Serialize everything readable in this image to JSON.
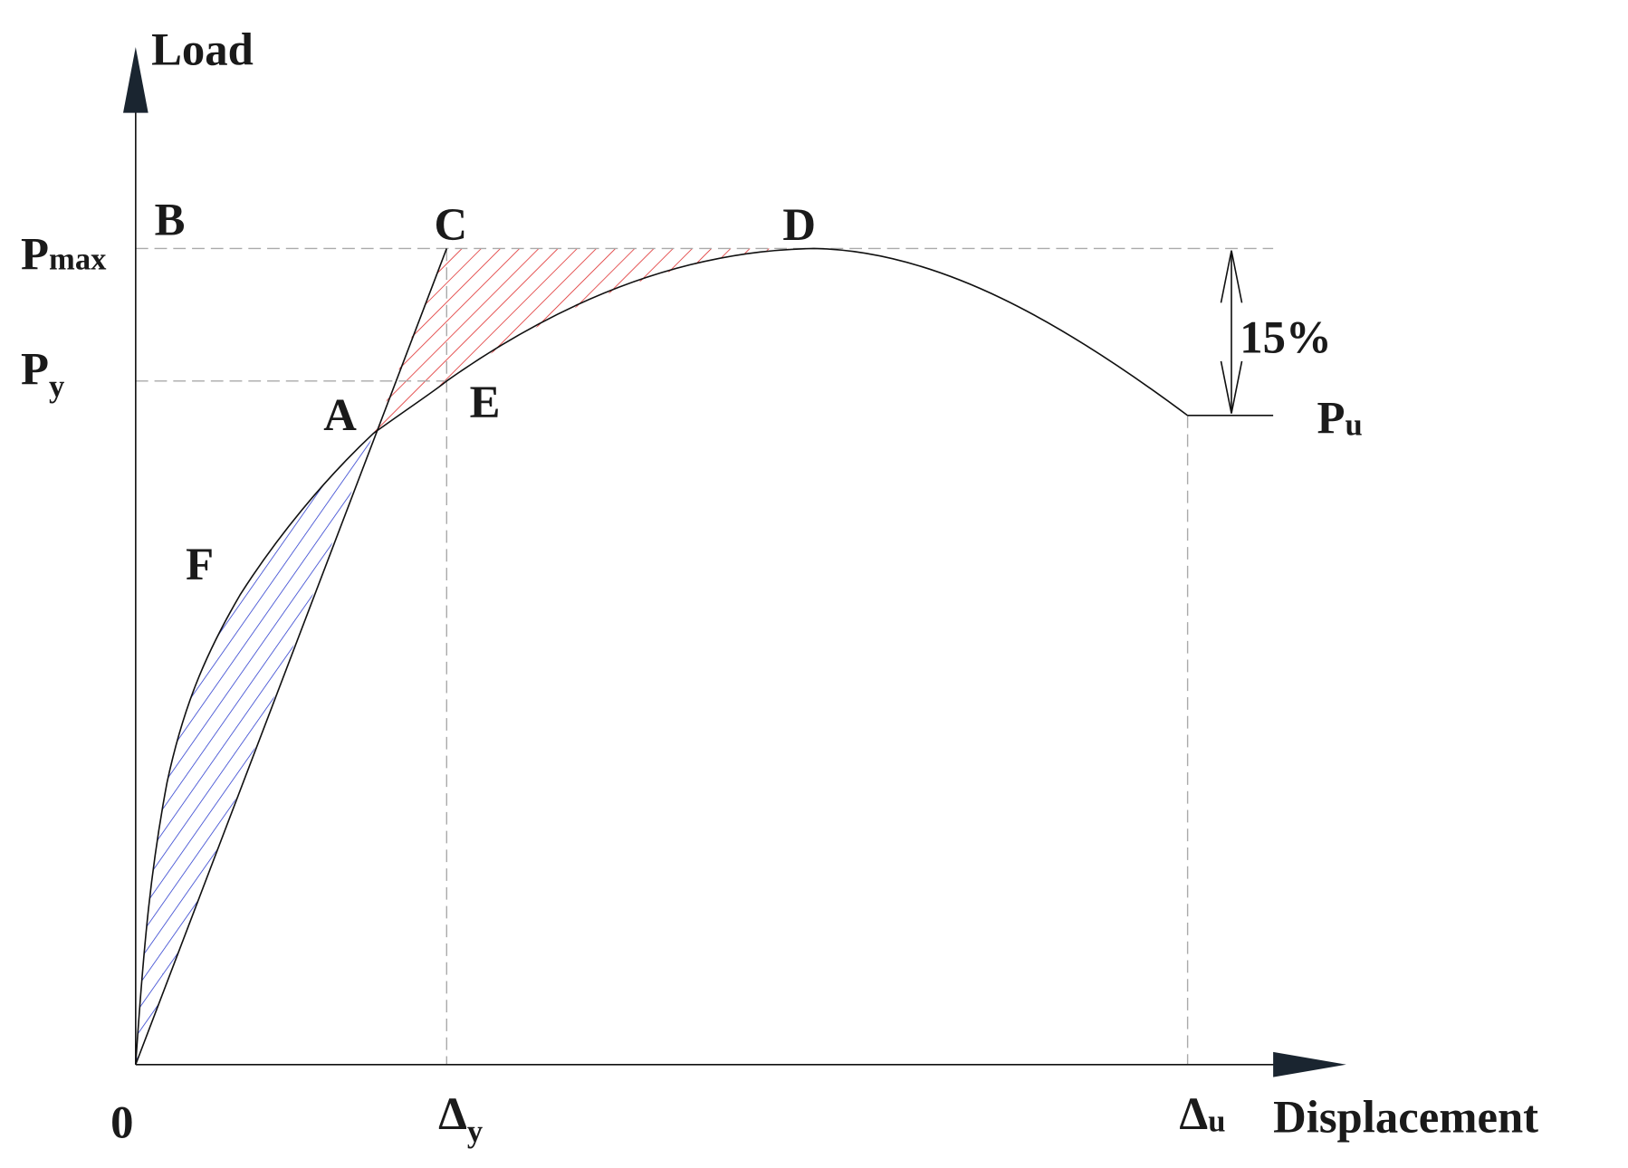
{
  "axes": {
    "y_label": "Load",
    "x_label": "Displacement",
    "origin": "0"
  },
  "points": {
    "A": "A",
    "B": "B",
    "C": "C",
    "D": "D",
    "E": "E",
    "F": "F"
  },
  "load_levels": {
    "max": {
      "base": "P",
      "sub": "max"
    },
    "yield": {
      "base": "P",
      "sub": "y"
    },
    "ultimate": {
      "base": "P",
      "sub": "u"
    }
  },
  "displacements": {
    "yield": {
      "base": "Δ",
      "sub": "y"
    },
    "ultimate": {
      "base": "Δ",
      "sub": "u"
    }
  },
  "drop_annotation": "15%"
}
